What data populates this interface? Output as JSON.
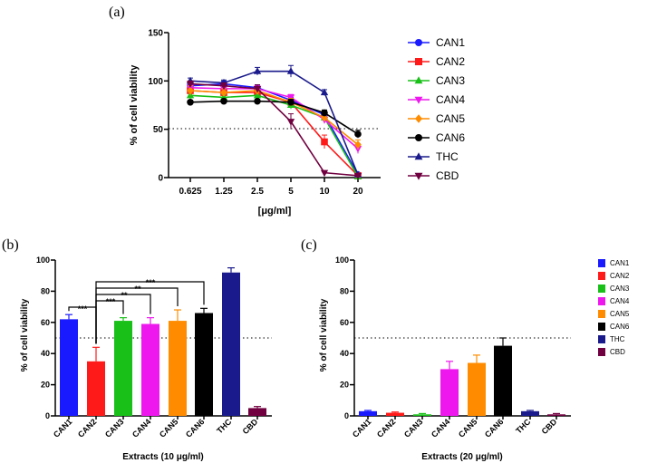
{
  "chart_data": [
    {
      "type": "line",
      "panel_label": "(a)",
      "title": "",
      "xlabel": "[μg/ml]",
      "ylabel": "% of cell viability",
      "x_tick_labels": [
        "0.625",
        "1.25",
        "2.5",
        "5",
        "10",
        "20"
      ],
      "y_ticks": [
        "0",
        "50",
        "100",
        "150"
      ],
      "ylim": [
        0,
        150
      ],
      "reference_line": 50,
      "legend_position": "right",
      "series": [
        {
          "name": "CAN1",
          "color": "#1a1aff",
          "marker": "circle",
          "values": [
            95,
            97,
            93,
            80,
            65,
            3
          ],
          "errors": [
            4,
            3,
            3,
            3,
            4,
            2
          ]
        },
        {
          "name": "CAN2",
          "color": "#ff1a1a",
          "marker": "square",
          "values": [
            90,
            88,
            88,
            78,
            37,
            2
          ],
          "errors": [
            4,
            3,
            4,
            3,
            7,
            1
          ]
        },
        {
          "name": "CAN3",
          "color": "#18c018",
          "marker": "triangle-up",
          "values": [
            85,
            83,
            85,
            75,
            62,
            1
          ],
          "errors": [
            4,
            3,
            5,
            4,
            4,
            1
          ]
        },
        {
          "name": "CAN4",
          "color": "#ee18ee",
          "marker": "triangle-down",
          "values": [
            93,
            92,
            92,
            83,
            60,
            30
          ],
          "errors": [
            4,
            4,
            3,
            3,
            4,
            5
          ]
        },
        {
          "name": "CAN5",
          "color": "#ff8c00",
          "marker": "diamond",
          "values": [
            90,
            88,
            90,
            78,
            62,
            34
          ],
          "errors": [
            5,
            4,
            4,
            4,
            4,
            5
          ]
        },
        {
          "name": "CAN6",
          "color": "#000000",
          "marker": "circle",
          "values": [
            78,
            79,
            79,
            78,
            67,
            45
          ],
          "errors": [
            2,
            2,
            2,
            3,
            3,
            4
          ]
        },
        {
          "name": "THC",
          "color": "#1a1a8c",
          "marker": "triangle-up",
          "values": [
            100,
            98,
            110,
            110,
            88,
            3
          ],
          "errors": [
            3,
            3,
            4,
            6,
            3,
            1
          ]
        },
        {
          "name": "CBD",
          "color": "#700040",
          "marker": "triangle-down",
          "values": [
            97,
            95,
            92,
            58,
            5,
            2
          ],
          "errors": [
            3,
            3,
            4,
            8,
            1,
            1
          ]
        }
      ]
    },
    {
      "type": "bar",
      "panel_label": "(b)",
      "title": "",
      "xlabel": "Extracts (10 μg/ml)",
      "ylabel": "% of cell viability",
      "categories": [
        "CAN1",
        "CAN2",
        "CAN3",
        "CAN4",
        "CAN5",
        "CAN6",
        "THC",
        "CBD"
      ],
      "values": [
        62,
        35,
        61,
        59,
        61,
        66,
        92,
        5
      ],
      "errors": [
        3,
        9,
        2,
        4,
        7,
        3,
        3,
        1
      ],
      "colors": [
        "#1a1aff",
        "#ff1a1a",
        "#18c018",
        "#ee18ee",
        "#ff8c00",
        "#000000",
        "#1a1a8c",
        "#700040"
      ],
      "y_ticks": [
        "0",
        "20",
        "40",
        "60",
        "80",
        "100"
      ],
      "ylim": [
        0,
        100
      ],
      "reference_line": 50,
      "significance": [
        {
          "from": "CAN1",
          "to": "CAN2",
          "label": "***"
        },
        {
          "from": "CAN2",
          "to": "CAN3",
          "label": "***"
        },
        {
          "from": "CAN2",
          "to": "CAN4",
          "label": "**"
        },
        {
          "from": "CAN2",
          "to": "CAN5",
          "label": "**"
        },
        {
          "from": "CAN2",
          "to": "CAN6",
          "label": "***"
        }
      ]
    },
    {
      "type": "bar",
      "panel_label": "(c)",
      "title": "",
      "xlabel": "Extracts (20 μg/ml)",
      "ylabel": "% of cell viability",
      "categories": [
        "CAN1",
        "CAN2",
        "CAN3",
        "CAN4",
        "CAN5",
        "CAN6",
        "THC",
        "CBD"
      ],
      "values": [
        3,
        2,
        1,
        30,
        34,
        45,
        3,
        1
      ],
      "errors": [
        0.5,
        0.5,
        0.5,
        5,
        5,
        5,
        0.5,
        0.5
      ],
      "colors": [
        "#1a1aff",
        "#ff1a1a",
        "#18c018",
        "#ee18ee",
        "#ff8c00",
        "#000000",
        "#1a1a8c",
        "#700040"
      ],
      "y_ticks": [
        "0",
        "20",
        "40",
        "60",
        "80",
        "100"
      ],
      "ylim": [
        0,
        100
      ],
      "reference_line": 50,
      "legend_position": "right",
      "legend": [
        "CAN1",
        "CAN2",
        "CAN3",
        "CAN4",
        "CAN5",
        "CAN6",
        "THC",
        "CBD"
      ]
    }
  ]
}
